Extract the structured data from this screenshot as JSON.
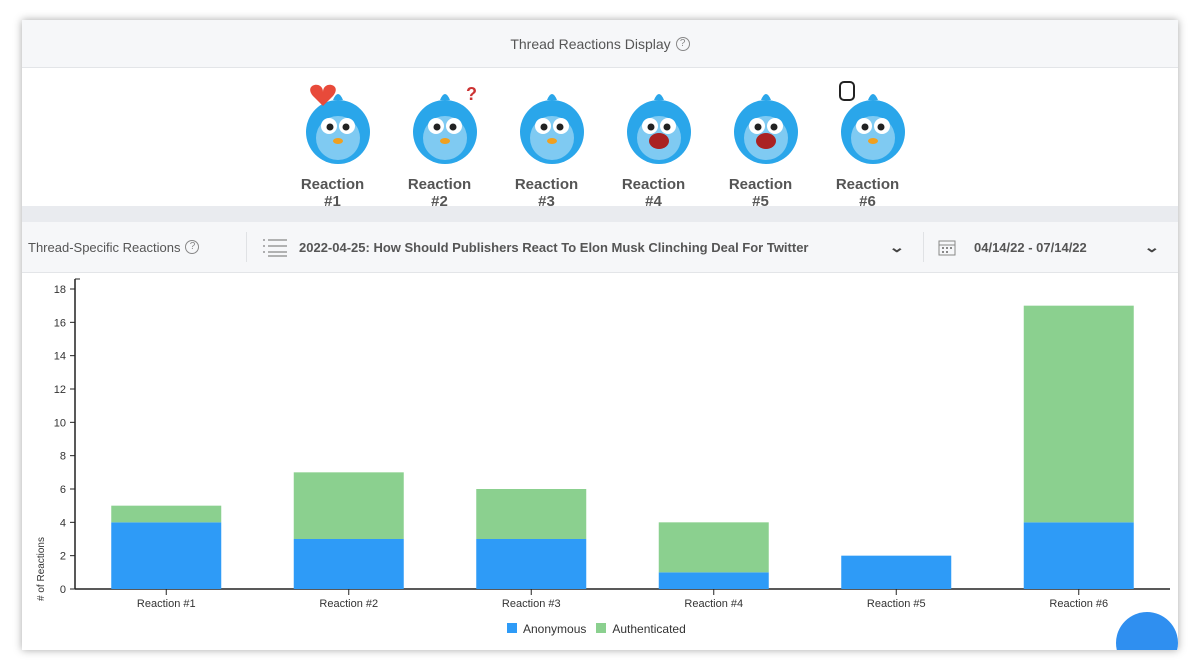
{
  "header": {
    "title": "Thread Reactions Display"
  },
  "reactions": [
    {
      "label": "Reaction #1",
      "icon": "bird-love-icon"
    },
    {
      "label": "Reaction #2",
      "icon": "bird-confused-icon"
    },
    {
      "label": "Reaction #3",
      "icon": "bird-angry-icon"
    },
    {
      "label": "Reaction #4",
      "icon": "bird-laughing-icon"
    },
    {
      "label": "Reaction #5",
      "icon": "bird-crying-icon"
    },
    {
      "label": "Reaction #6",
      "icon": "bird-thumbs-up-icon"
    }
  ],
  "filters": {
    "title": "Thread-Specific Reactions",
    "thread": "2022-04-25: How Should Publishers React To Elon Musk Clinching Deal For Twitter",
    "date_range": "04/14/22 - 07/14/22"
  },
  "chart_data": {
    "type": "bar",
    "stacked": true,
    "categories": [
      "Reaction #1",
      "Reaction #2",
      "Reaction #3",
      "Reaction #4",
      "Reaction #5",
      "Reaction #6"
    ],
    "series": [
      {
        "name": "Anonymous",
        "color": "#2e9bf7",
        "values": [
          4,
          3,
          3,
          1,
          2,
          4
        ]
      },
      {
        "name": "Authenticated",
        "color": "#8bd08f",
        "values": [
          1,
          4,
          3,
          3,
          0,
          13
        ]
      }
    ],
    "ylabel": "# of Reactions",
    "ylim": [
      0,
      18
    ],
    "yticks": [
      0,
      2,
      4,
      6,
      8,
      10,
      12,
      14,
      16,
      18
    ],
    "grid": false,
    "legend": "bottom"
  }
}
